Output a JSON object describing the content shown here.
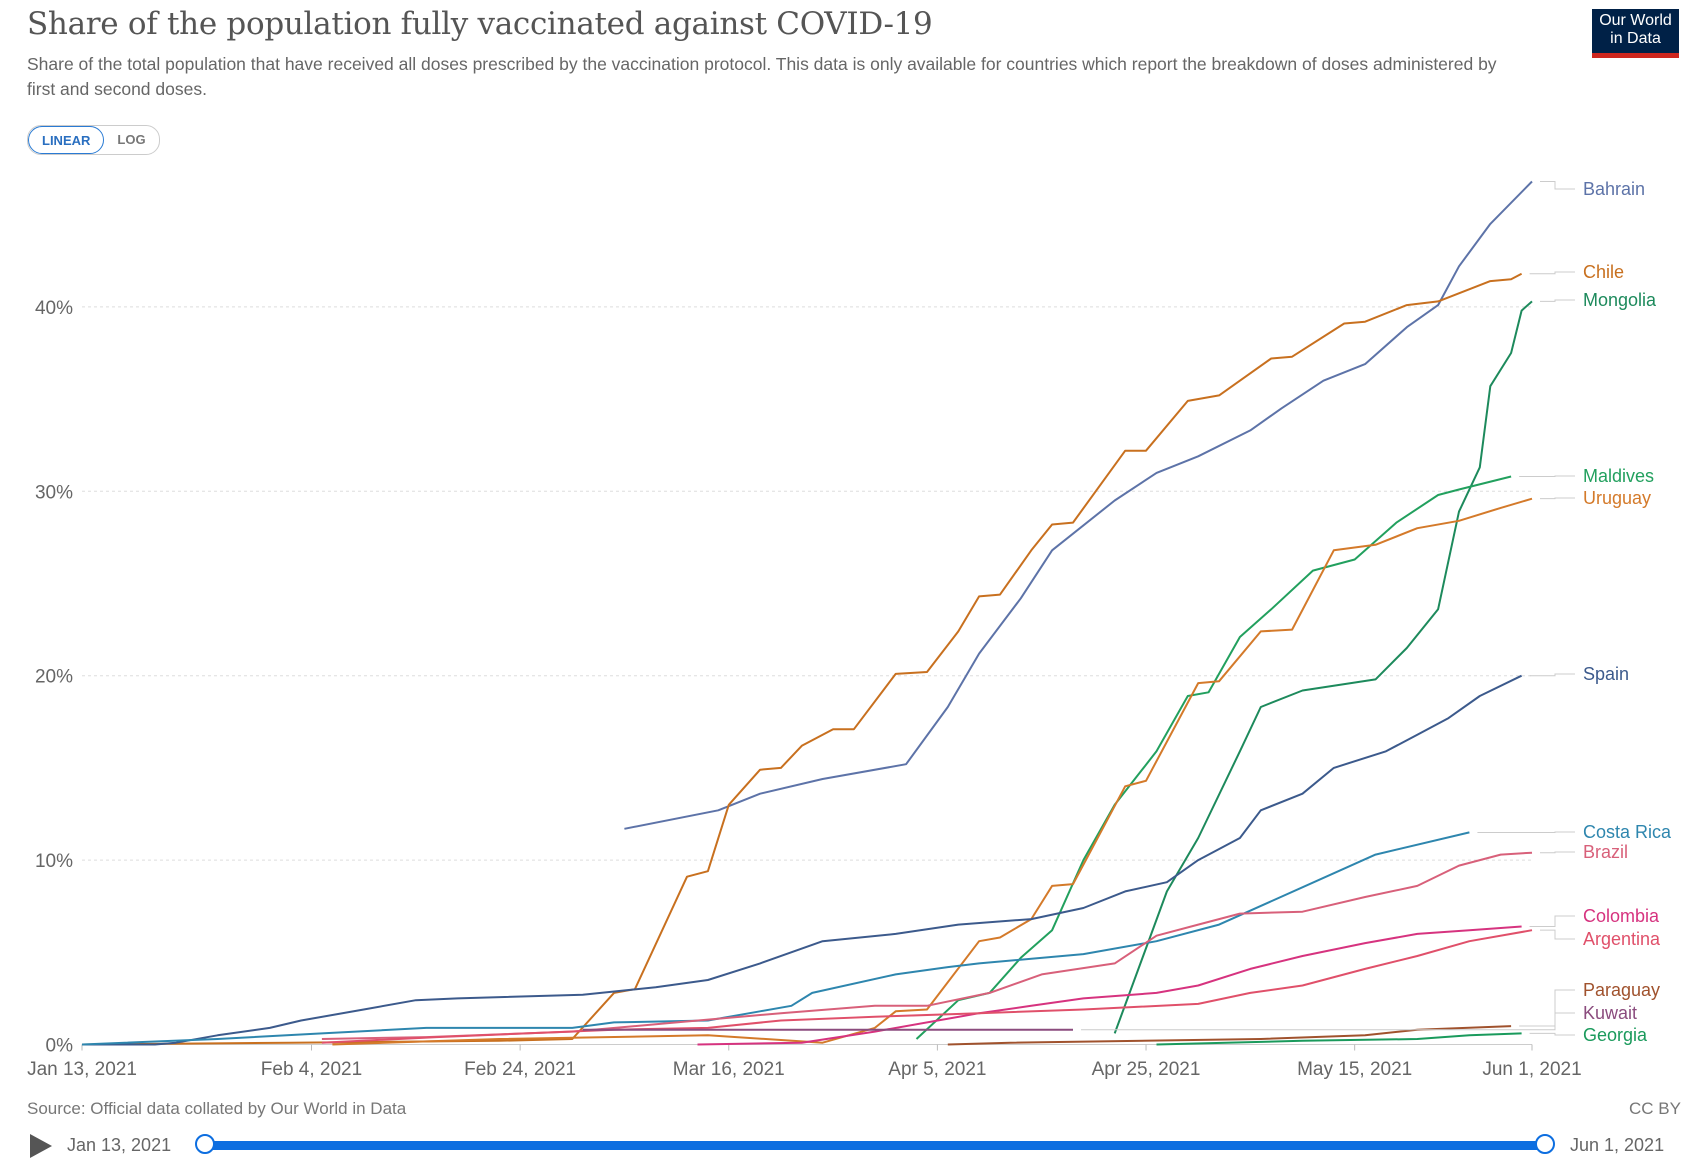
{
  "header": {
    "title": "Share of the population fully vaccinated against COVID-19",
    "subtitle": "Share of the total population that have received all doses prescribed by the vaccination protocol. This data is only available for countries which report the breakdown of doses administered by first and second doses.",
    "logo_text": "Our World in Data"
  },
  "scale_toggle": {
    "linear": "LINEAR",
    "log": "LOG",
    "selected": "LINEAR"
  },
  "footer": {
    "source": "Source: Official data collated by Our World in Data",
    "license": "CC BY"
  },
  "timeline": {
    "start": "Jan 13, 2021",
    "end": "Jun 1, 2021"
  },
  "chart_data": {
    "type": "line",
    "title": "Share of the population fully vaccinated against COVID-19",
    "xlabel": "",
    "ylabel": "",
    "x_unit": "days since Jan 13, 2021",
    "xlim": [
      0,
      139
    ],
    "ylim": [
      0,
      47
    ],
    "y_ticks": [
      0,
      10,
      20,
      30,
      40
    ],
    "y_tick_labels": [
      "0%",
      "10%",
      "20%",
      "30%",
      "40%"
    ],
    "x_ticks": [
      0,
      22,
      42,
      62,
      82,
      102,
      122,
      139
    ],
    "x_tick_labels": [
      "Jan 13, 2021",
      "Feb 4, 2021",
      "Feb 24, 2021",
      "Mar 16, 2021",
      "Apr 5, 2021",
      "Apr 25, 2021",
      "May 15, 2021",
      "Jun 1, 2021"
    ],
    "grid": "horizontal dashed",
    "legend": "right (inline end labels)",
    "series": [
      {
        "name": "Bahrain",
        "color": "#5d73a8",
        "points": [
          [
            52,
            11.7
          ],
          [
            61,
            12.7
          ],
          [
            65,
            13.6
          ],
          [
            71,
            14.4
          ],
          [
            79,
            15.2
          ],
          [
            83,
            18.3
          ],
          [
            86,
            21.2
          ],
          [
            90,
            24.2
          ],
          [
            93,
            26.8
          ],
          [
            99,
            29.5
          ],
          [
            103,
            31
          ],
          [
            107,
            31.9
          ],
          [
            112,
            33.3
          ],
          [
            115,
            34.5
          ],
          [
            119,
            36
          ],
          [
            123,
            36.9
          ],
          [
            127,
            38.9
          ],
          [
            130,
            40.1
          ],
          [
            132,
            42.2
          ],
          [
            135,
            44.5
          ],
          [
            139,
            46.8
          ]
        ]
      },
      {
        "name": "Chile",
        "color": "#c8701f",
        "points": [
          [
            0,
            0
          ],
          [
            20,
            0.1
          ],
          [
            40,
            0.2
          ],
          [
            47,
            0.3
          ],
          [
            51,
            2.8
          ],
          [
            53,
            3
          ],
          [
            58,
            9.1
          ],
          [
            60,
            9.4
          ],
          [
            62,
            13
          ],
          [
            65,
            14.9
          ],
          [
            67,
            15
          ],
          [
            69,
            16.2
          ],
          [
            72,
            17.1
          ],
          [
            74,
            17.1
          ],
          [
            78,
            20.1
          ],
          [
            81,
            20.2
          ],
          [
            84,
            22.4
          ],
          [
            86,
            24.3
          ],
          [
            88,
            24.4
          ],
          [
            91,
            26.8
          ],
          [
            93,
            28.2
          ],
          [
            95,
            28.3
          ],
          [
            100,
            32.2
          ],
          [
            102,
            32.2
          ],
          [
            106,
            34.9
          ],
          [
            109,
            35.2
          ],
          [
            114,
            37.2
          ],
          [
            116,
            37.3
          ],
          [
            121,
            39.1
          ],
          [
            123,
            39.2
          ],
          [
            127,
            40.1
          ],
          [
            130,
            40.3
          ],
          [
            135,
            41.4
          ],
          [
            137,
            41.5
          ],
          [
            138,
            41.8
          ]
        ]
      },
      {
        "name": "Mongolia",
        "color": "#1d8a5c",
        "points": [
          [
            99,
            0.6
          ],
          [
            104,
            8.3
          ],
          [
            107,
            11.2
          ],
          [
            111,
            15.9
          ],
          [
            113,
            18.3
          ],
          [
            117,
            19.2
          ],
          [
            124,
            19.8
          ],
          [
            127,
            21.5
          ],
          [
            130,
            23.6
          ],
          [
            132,
            28.9
          ],
          [
            134,
            31.3
          ],
          [
            135,
            35.7
          ],
          [
            137,
            37.5
          ],
          [
            138,
            39.8
          ],
          [
            139,
            40.3
          ]
        ]
      },
      {
        "name": "Maldives",
        "color": "#22a05e",
        "points": [
          [
            80,
            0.3
          ],
          [
            84,
            2.4
          ],
          [
            87,
            2.8
          ],
          [
            90,
            4.7
          ],
          [
            93,
            6.2
          ],
          [
            96,
            10
          ],
          [
            99,
            13
          ],
          [
            103,
            15.9
          ],
          [
            106,
            18.9
          ],
          [
            108,
            19.1
          ],
          [
            111,
            22.1
          ],
          [
            114,
            23.6
          ],
          [
            118,
            25.7
          ],
          [
            122,
            26.3
          ],
          [
            126,
            28.3
          ],
          [
            130,
            29.8
          ],
          [
            132,
            30.1
          ],
          [
            137,
            30.8
          ]
        ]
      },
      {
        "name": "Uruguay",
        "color": "#d47a2a",
        "points": [
          [
            24,
            0
          ],
          [
            40,
            0.3
          ],
          [
            60,
            0.5
          ],
          [
            71,
            0.1
          ],
          [
            76,
            0.9
          ],
          [
            78,
            1.8
          ],
          [
            81,
            1.9
          ],
          [
            86,
            5.6
          ],
          [
            88,
            5.8
          ],
          [
            91,
            6.8
          ],
          [
            93,
            8.6
          ],
          [
            95,
            8.7
          ],
          [
            100,
            14
          ],
          [
            102,
            14.3
          ],
          [
            107,
            19.6
          ],
          [
            109,
            19.7
          ],
          [
            113,
            22.4
          ],
          [
            116,
            22.5
          ],
          [
            120,
            26.8
          ],
          [
            124,
            27.1
          ],
          [
            128,
            28
          ],
          [
            132,
            28.4
          ],
          [
            136,
            29.1
          ],
          [
            139,
            29.6
          ]
        ]
      },
      {
        "name": "Spain",
        "color": "#3c5a8c",
        "points": [
          [
            0,
            0
          ],
          [
            7,
            0
          ],
          [
            9,
            0.1
          ],
          [
            13,
            0.5
          ],
          [
            18,
            0.9
          ],
          [
            21,
            1.3
          ],
          [
            27,
            1.9
          ],
          [
            32,
            2.4
          ],
          [
            36,
            2.5
          ],
          [
            48,
            2.7
          ],
          [
            55,
            3.1
          ],
          [
            60,
            3.5
          ],
          [
            65,
            4.4
          ],
          [
            71,
            5.6
          ],
          [
            78,
            6
          ],
          [
            84,
            6.5
          ],
          [
            91,
            6.8
          ],
          [
            96,
            7.4
          ],
          [
            100,
            8.3
          ],
          [
            104,
            8.8
          ],
          [
            107,
            10
          ],
          [
            111,
            11.2
          ],
          [
            113,
            12.7
          ],
          [
            117,
            13.6
          ],
          [
            120,
            15
          ],
          [
            125,
            15.9
          ],
          [
            128,
            16.8
          ],
          [
            131,
            17.7
          ],
          [
            134,
            18.9
          ],
          [
            138,
            20
          ]
        ]
      },
      {
        "name": "Costa Rica",
        "color": "#2e86ae",
        "points": [
          [
            0,
            0
          ],
          [
            13,
            0.3
          ],
          [
            23,
            0.6
          ],
          [
            33,
            0.9
          ],
          [
            47,
            0.9
          ],
          [
            51,
            1.2
          ],
          [
            60,
            1.3
          ],
          [
            65,
            1.8
          ],
          [
            68,
            2.1
          ],
          [
            70,
            2.8
          ],
          [
            78,
            3.8
          ],
          [
            83,
            4.2
          ],
          [
            86,
            4.4
          ],
          [
            96,
            4.9
          ],
          [
            103,
            5.6
          ],
          [
            109,
            6.5
          ],
          [
            124,
            10.3
          ],
          [
            133,
            11.5
          ]
        ]
      },
      {
        "name": "Brazil",
        "color": "#d8607a",
        "points": [
          [
            23,
            0.3
          ],
          [
            33,
            0.4
          ],
          [
            47,
            0.7
          ],
          [
            57,
            1.2
          ],
          [
            67,
            1.7
          ],
          [
            76,
            2.1
          ],
          [
            81,
            2.1
          ],
          [
            87,
            2.8
          ],
          [
            92,
            3.8
          ],
          [
            99,
            4.4
          ],
          [
            103,
            5.9
          ],
          [
            107,
            6.5
          ],
          [
            111,
            7.1
          ],
          [
            117,
            7.2
          ],
          [
            123,
            8
          ],
          [
            128,
            8.6
          ],
          [
            132,
            9.7
          ],
          [
            136,
            10.3
          ],
          [
            139,
            10.4
          ]
        ]
      },
      {
        "name": "Colombia",
        "color": "#d6337f",
        "points": [
          [
            59,
            0
          ],
          [
            69,
            0.1
          ],
          [
            76,
            0.7
          ],
          [
            86,
            1.7
          ],
          [
            91,
            2.1
          ],
          [
            96,
            2.5
          ],
          [
            103,
            2.8
          ],
          [
            107,
            3.2
          ],
          [
            112,
            4.1
          ],
          [
            117,
            4.8
          ],
          [
            123,
            5.5
          ],
          [
            128,
            6
          ],
          [
            133,
            6.2
          ],
          [
            138,
            6.4
          ]
        ]
      },
      {
        "name": "Argentina",
        "color": "#e0506a",
        "points": [
          [
            23,
            0.1
          ],
          [
            34,
            0.4
          ],
          [
            51,
            0.8
          ],
          [
            60,
            0.9
          ],
          [
            67,
            1.3
          ],
          [
            76,
            1.5
          ],
          [
            86,
            1.7
          ],
          [
            96,
            1.9
          ],
          [
            107,
            2.2
          ],
          [
            112,
            2.8
          ],
          [
            117,
            3.2
          ],
          [
            123,
            4.1
          ],
          [
            128,
            4.8
          ],
          [
            133,
            5.6
          ],
          [
            139,
            6.2
          ]
        ]
      },
      {
        "name": "Paraguay",
        "color": "#a0522d",
        "points": [
          [
            83,
            0
          ],
          [
            89,
            0.1
          ],
          [
            113,
            0.3
          ],
          [
            123,
            0.5
          ],
          [
            128,
            0.8
          ],
          [
            137,
            1.0
          ]
        ]
      },
      {
        "name": "Kuwait",
        "color": "#8b4c7e",
        "points": [
          [
            48,
            0.8
          ],
          [
            95,
            0.8
          ]
        ]
      },
      {
        "name": "Georgia",
        "color": "#1a9a5c",
        "points": [
          [
            103,
            0
          ],
          [
            117,
            0.2
          ],
          [
            128,
            0.3
          ],
          [
            133,
            0.5
          ],
          [
            138,
            0.6
          ]
        ]
      }
    ]
  }
}
